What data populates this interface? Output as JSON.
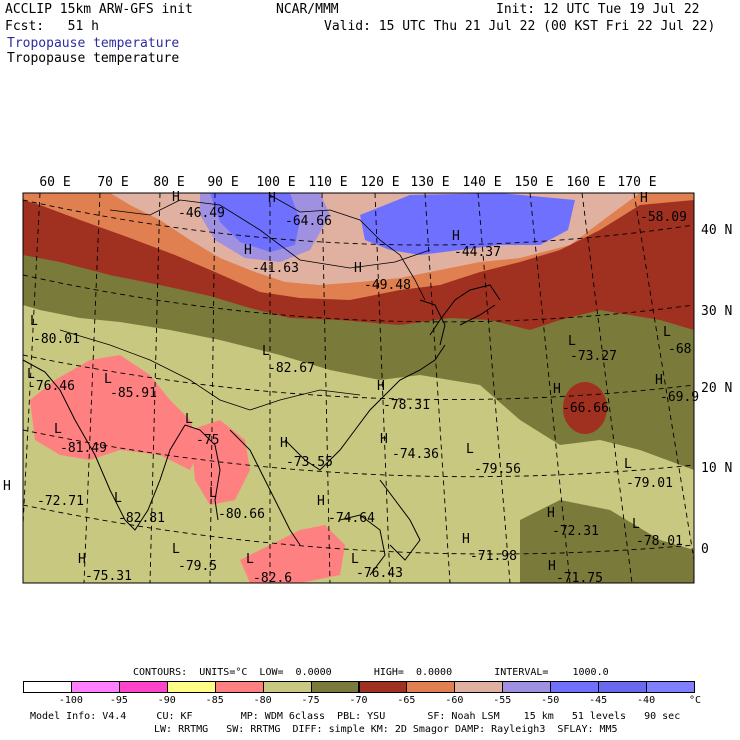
{
  "header": {
    "model_title": "ACCLIP 15km ARW-GFS init",
    "org": "NCAR/MMM",
    "init_text": "Init: 12 UTC Tue 19 Jul 22",
    "fcst_text": "Fcst:   51 h",
    "valid_text": "Valid: 15 UTC Thu 21 Jul 22 (00 KST Fri 22 Jul 22)",
    "field_title_color": "Tropopause temperature",
    "field_title_black": "Tropopause temperature"
  },
  "map": {
    "longitude_labels": [
      "60 E",
      "70 E",
      "80 E",
      "90 E",
      "100 E",
      "110 E",
      "120 E",
      "130 E",
      "140 E",
      "150 E",
      "160 E",
      "170 E"
    ],
    "latitude_labels": [
      "40 N",
      "30 N",
      "20 N",
      "10 N",
      "0"
    ],
    "pressure_centers": [
      {
        "letter": "H",
        "value": "-46.49"
      },
      {
        "letter": "H",
        "value": "-64.66"
      },
      {
        "letter": "H",
        "value": "-41.63"
      },
      {
        "letter": "H",
        "value": "-49.48"
      },
      {
        "letter": "H",
        "value": "-44.37"
      },
      {
        "letter": "H",
        "value": "-58.09"
      },
      {
        "letter": "L",
        "value": "-80.01"
      },
      {
        "letter": "L",
        "value": "-76.46"
      },
      {
        "letter": "L",
        "value": "-85.91"
      },
      {
        "letter": "L",
        "value": "-82.67"
      },
      {
        "letter": "L",
        "value": "-73.27"
      },
      {
        "letter": "L",
        "value": "-68"
      },
      {
        "letter": "H",
        "value": "-66.66"
      },
      {
        "letter": "H",
        "value": "-69.9"
      },
      {
        "letter": "L",
        "value": "-81.49"
      },
      {
        "letter": "L",
        "value": "-75"
      },
      {
        "letter": "H",
        "value": "-78.31"
      },
      {
        "letter": "H",
        "value": "-73.55"
      },
      {
        "letter": "H",
        "value": "-74.36"
      },
      {
        "letter": "L",
        "value": "-79.56"
      },
      {
        "letter": "H",
        "value": "-72.71"
      },
      {
        "letter": "L",
        "value": "-82.81"
      },
      {
        "letter": "L",
        "value": "-80.66"
      },
      {
        "letter": "H",
        "value": "-74.64"
      },
      {
        "letter": "L",
        "value": "-79.01"
      },
      {
        "letter": "H",
        "value": "-72.31"
      },
      {
        "letter": "L",
        "value": "-78.01"
      },
      {
        "letter": "H",
        "value": "-71.98"
      },
      {
        "letter": "H",
        "value": "-75.31"
      },
      {
        "letter": "L",
        "value": "-79.5"
      },
      {
        "letter": "L",
        "value": "-82.6"
      },
      {
        "letter": "L",
        "value": "-76.43"
      },
      {
        "letter": "H",
        "value": "-71.75"
      }
    ]
  },
  "contours": {
    "text": "CONTOURS:  UNITS=°C  LOW=  0.0000       HIGH=  0.0000       INTERVAL=    1000.0"
  },
  "colorbar": {
    "colors": [
      "#ffffff",
      "#ff80ff",
      "#ff44cc",
      "#ffff88",
      "#ff8080",
      "#c8c880",
      "#7a7a3a",
      "#a03020",
      "#e08050",
      "#e0b0a0",
      "#a090e0",
      "#7070ff",
      "#6868f0",
      "#8080ff"
    ],
    "labels": [
      "-100",
      "-95",
      "-90",
      "-85",
      "-80",
      "-75",
      "-70",
      "-65",
      "-60",
      "-55",
      "-50",
      "-45",
      "-40"
    ],
    "unit": "°C"
  },
  "footer": {
    "line1": "Model Info: V4.4     CU: KF        MP: WDM 6class  PBL: YSU       SF: Noah LSM    15 km   51 levels   90 sec",
    "line2": "LW: RRTMG   SW: RRTMG  DIFF: simple KM: 2D Smagor DAMP: Rayleigh3  SFLAY: MM5"
  }
}
